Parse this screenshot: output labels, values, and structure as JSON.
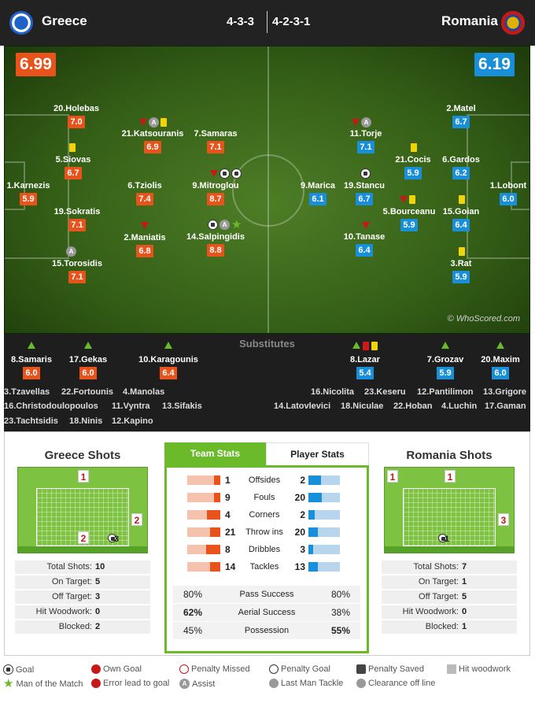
{
  "header": {
    "home_team": "Greece",
    "away_team": "Romania",
    "home_formation": "4-3-3",
    "away_formation": "4-2-3-1"
  },
  "pitch": {
    "home_rating": "6.99",
    "away_rating": "6.19",
    "watermark": "© WhoScored.com",
    "home_players": [
      {
        "name": "20.Holebas",
        "rating": "7.0"
      },
      {
        "name": "5.Siovas",
        "rating": "6.7"
      },
      {
        "name": "1.Karnezis",
        "rating": "5.9"
      },
      {
        "name": "19.Sokratis",
        "rating": "7.1"
      },
      {
        "name": "15.Torosidis",
        "rating": "7.1"
      },
      {
        "name": "21.Katsouranis",
        "rating": "6.9"
      },
      {
        "name": "6.Tziolis",
        "rating": "7.4"
      },
      {
        "name": "2.Maniatis",
        "rating": "6.8"
      },
      {
        "name": "7.Samaras",
        "rating": "7.1"
      },
      {
        "name": "9.Mitroglou",
        "rating": "8.7"
      },
      {
        "name": "14.Salpingidis",
        "rating": "8.8"
      }
    ],
    "away_players": [
      {
        "name": "2.Matel",
        "rating": "6.7"
      },
      {
        "name": "6.Gardos",
        "rating": "6.2"
      },
      {
        "name": "1.Lobont",
        "rating": "6.0"
      },
      {
        "name": "15.Goian",
        "rating": "6.4"
      },
      {
        "name": "3.Rat",
        "rating": "5.9"
      },
      {
        "name": "21.Cocis",
        "rating": "5.9"
      },
      {
        "name": "5.Bourceanu",
        "rating": "5.9"
      },
      {
        "name": "11.Torje",
        "rating": "7.1"
      },
      {
        "name": "19.Stancu",
        "rating": "6.7"
      },
      {
        "name": "10.Tanase",
        "rating": "6.4"
      },
      {
        "name": "9.Marica",
        "rating": "6.1"
      }
    ]
  },
  "subs": {
    "title": "Substitutes",
    "home": [
      {
        "name": "8.Samaris",
        "rating": "6.0"
      },
      {
        "name": "17.Gekas",
        "rating": "6.0"
      },
      {
        "name": "10.Karagounis",
        "rating": "6.4"
      }
    ],
    "away": [
      {
        "name": "8.Lazar",
        "rating": "5.4"
      },
      {
        "name": "7.Grozav",
        "rating": "5.9"
      },
      {
        "name": "20.Maxim",
        "rating": "6.0"
      }
    ],
    "home_unused": [
      "3.Tzavellas",
      "22.Fortounis",
      "4.Manolas",
      "16.Christodoulopoulos",
      "11.Vyntra",
      "13.Sifakis",
      "23.Tachtsidis",
      "18.Ninis",
      "12.Kapino"
    ],
    "away_unused": [
      "16.Nicolita",
      "23.Keseru",
      "12.Pantilimon",
      "13.Grigore",
      "14.Latovlevici",
      "18.Niculae",
      "22.Hoban",
      "4.Luchin",
      "17.Gaman"
    ]
  },
  "home_shots": {
    "title": "Greece Shots",
    "zones": {
      "top": "1",
      "right": "2",
      "box": "2",
      "goal": "3"
    },
    "labels": [
      "Total Shots:",
      "On Target:",
      "Off Target:",
      "Hit Woodwork:",
      "Blocked:"
    ],
    "values": [
      "10",
      "5",
      "3",
      "0",
      "2"
    ]
  },
  "away_shots": {
    "title": "Romania Shots",
    "zones": {
      "topleft": "1",
      "top": "1",
      "right": "3",
      "goal": "1"
    },
    "labels": [
      "Total Shots:",
      "On Target:",
      "Off Target:",
      "Hit Woodwork:",
      "Blocked:"
    ],
    "values": [
      "7",
      "1",
      "5",
      "0",
      "1"
    ]
  },
  "team_stats": {
    "tab_team": "Team Stats",
    "tab_player": "Player Stats",
    "rows": [
      {
        "label": "Offsides",
        "home": "1",
        "away": "2",
        "home_frac": 0.33,
        "away_frac": 0.67
      },
      {
        "label": "Fouls",
        "home": "9",
        "away": "20",
        "home_frac": 0.31,
        "away_frac": 0.69
      },
      {
        "label": "Corners",
        "home": "4",
        "away": "2",
        "home_frac": 0.67,
        "away_frac": 0.33
      },
      {
        "label": "Throw ins",
        "home": "21",
        "away": "20",
        "home_frac": 0.51,
        "away_frac": 0.49
      },
      {
        "label": "Dribbles",
        "home": "8",
        "away": "3",
        "home_frac": 0.73,
        "away_frac": 0.27
      },
      {
        "label": "Tackles",
        "home": "14",
        "away": "13",
        "home_frac": 0.52,
        "away_frac": 0.48
      }
    ],
    "pct_rows": [
      {
        "label": "Pass Success",
        "home": "80%",
        "away": "80%"
      },
      {
        "label": "Aerial Success",
        "home": "62%",
        "away": "38%"
      },
      {
        "label": "Possession",
        "home": "45%",
        "away": "55%"
      }
    ]
  },
  "legend": {
    "items": [
      "Goal",
      "Own Goal",
      "Penalty Missed",
      "Penalty Goal",
      "Penalty Saved",
      "Hit woodwork",
      "Man of the Match",
      "Error lead to goal",
      "Assist",
      "Last Man Tackle",
      "Clearance off line"
    ]
  },
  "colors": {
    "home": "#e8531c",
    "away": "#1a8fd9",
    "accent": "#6aba2a"
  }
}
